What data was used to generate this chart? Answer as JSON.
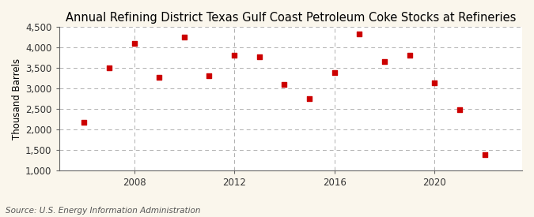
{
  "title": "Annual Refining District Texas Gulf Coast Petroleum Coke Stocks at Refineries",
  "ylabel": "Thousand Barrels",
  "source": "Source: U.S. Energy Information Administration",
  "background_color": "#faf6ec",
  "plot_background_color": "#ffffff",
  "marker_color": "#cc0000",
  "years": [
    2006,
    2007,
    2008,
    2009,
    2010,
    2011,
    2012,
    2013,
    2014,
    2015,
    2016,
    2017,
    2018,
    2019,
    2020,
    2021,
    2022
  ],
  "values": [
    2175,
    3500,
    4100,
    3275,
    4250,
    3300,
    3800,
    3775,
    3100,
    2750,
    3375,
    4325,
    3650,
    3800,
    3125,
    2475,
    1375
  ],
  "xlim": [
    2005.0,
    2023.5
  ],
  "ylim": [
    1000,
    4500
  ],
  "yticks": [
    1000,
    1500,
    2000,
    2500,
    3000,
    3500,
    4000,
    4500
  ],
  "xticks": [
    2008,
    2012,
    2016,
    2020
  ],
  "grid_color": "#b0b0b0",
  "title_fontsize": 10.5,
  "axis_fontsize": 8.5,
  "source_fontsize": 7.5
}
